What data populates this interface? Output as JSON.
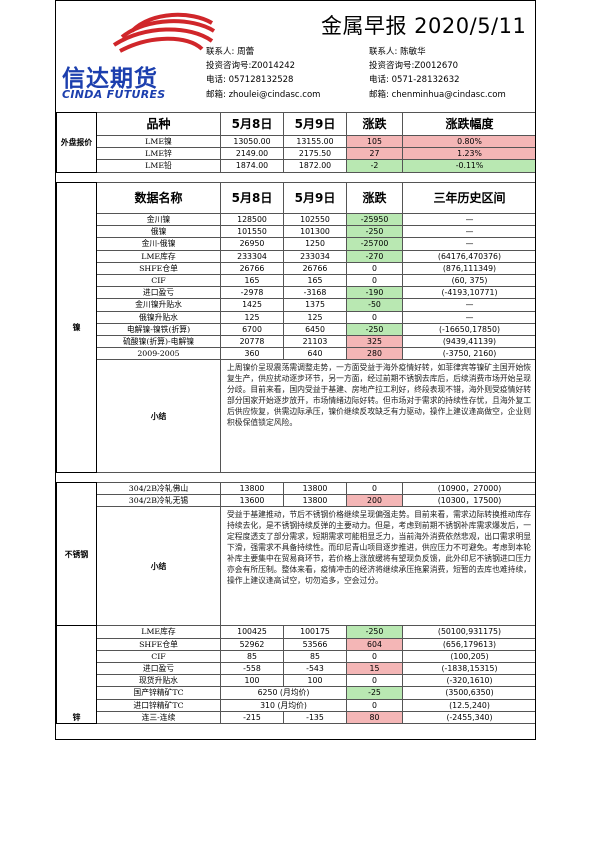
{
  "title": "金属早报 2020/5/11",
  "logo": {
    "name": "信达期货",
    "en": "CINDA FUTURES"
  },
  "contacts": [
    {
      "line1": "联系人: 周蕾",
      "line2": "投资咨询号:Z0014242",
      "line3": "电话: 057128132528",
      "line4": "邮箱: zhoulei@cindasc.com"
    },
    {
      "line1": "联系人: 陈敏华",
      "line2": "投资咨询号:Z0012670",
      "line3": "电话: 0571-28132632",
      "line4": "邮箱: chenminhua@cindasc.com"
    }
  ],
  "overseas": {
    "section": "外盘报价",
    "headers": [
      "品种",
      "5月8日",
      "5月9日",
      "涨跌",
      "涨跌幅度"
    ],
    "rows": [
      [
        "LME镍",
        "13050.00",
        "13155.00",
        "105",
        "0.80%"
      ],
      [
        "LME锌",
        "2149.00",
        "2175.50",
        "27",
        "1.23%"
      ],
      [
        "LME铅",
        "1874.00",
        "1872.00",
        "-2",
        "-0.11%"
      ]
    ]
  },
  "nickel": {
    "section": "镍",
    "headers": [
      "数据名称",
      "5月8日",
      "5月9日",
      "涨跌",
      "三年历史区间"
    ],
    "rows": [
      [
        "金川镍",
        "128500",
        "102550",
        "-25950",
        "—"
      ],
      [
        "俄镍",
        "101550",
        "101300",
        "-250",
        "—"
      ],
      [
        "金川-俄镍",
        "26950",
        "1250",
        "-25700",
        "—"
      ],
      [
        "LME库存",
        "233304",
        "233034",
        "-270",
        "(64176,470376)"
      ],
      [
        "SHFE仓单",
        "26766",
        "26766",
        "0",
        "(876,111349)"
      ],
      [
        "CIF",
        "165",
        "165",
        "0",
        "(60, 375)"
      ],
      [
        "进口盈亏",
        "-2978",
        "-3168",
        "-190",
        "(-4193,10771)"
      ],
      [
        "金川镍升贴水",
        "1425",
        "1375",
        "-50",
        "—"
      ],
      [
        "俄镍升贴水",
        "125",
        "125",
        "0",
        "—"
      ],
      [
        "电解镍-镍铁(折算)",
        "6700",
        "6450",
        "-250",
        "(-16650,17850)"
      ],
      [
        "硫酸镍(折算)-电解镍",
        "20778",
        "21103",
        "325",
        "(9439,41139)"
      ],
      [
        "2009-2005",
        "360",
        "640",
        "280",
        "(-3750, 2160)"
      ]
    ],
    "summary_label": "小结",
    "summary": "上周镍价呈现震荡需调整走势，一方面受益于海外疫情好转，如菲律宾等镍矿主国开始恢复生产，供应扰动逐步环节，另一方面，经过前期不锈钢去库后，后续消费市场开始呈现分歧。目前来看，国内受益于基建、房地产拉工利好，终段表现不错，海外则受疫情好转部分国家开始逐步放开，市场情绪边际好转。但市场对于需求的持续性存忧，且海外复工后供应恢复，供需边际承压，镍价继续反攻缺乏有力驱动，操作上建议逢高做空，企业则积极保值锁定风险。"
  },
  "stainless": {
    "section": "不锈钢",
    "rows": [
      [
        "304/2B冷轧佛山",
        "13800",
        "13800",
        "0",
        "(10900，27000)"
      ],
      [
        "304/2B冷轧无锡",
        "13600",
        "13800",
        "200",
        "(10300，17500)"
      ]
    ],
    "summary_label": "小结",
    "summary": "受益于基建推动，节后不锈钢价格继续呈现偏强走势。目前来看，需求边际转换推动库存持续去化，是不锈钢持续反弹的主要动力。但是，考虑到前期不锈钢补库需求爆发后，一定程度透支了部分需求，短期需求可能相显乏力，当前海外消费依然悲观，出口需求明显下滑，强需求不具备持续性。而印尼青山项目逐步推进，供应压力不可避免。考虑到本轮补库主要集中在贸易商环节，若价格上涨放缓将有望现负反馈，此外印尼不锈钢进口压力亦会有所压制。整体来看，疫情冲击的经济将继续承压拖累消费，短暂的去库也难持续，操作上建议逢高试空，切勿追多，空会过分。"
  },
  "zinc": {
    "section": "锌",
    "rows": [
      [
        "LME库存",
        "100425",
        "100175",
        "-250",
        "(50100,931175)"
      ],
      [
        "SHFE仓单",
        "52962",
        "53566",
        "604",
        "(656,179613)"
      ],
      [
        "CIF",
        "85",
        "85",
        "0",
        "(100,205)"
      ],
      [
        "进口盈亏",
        "-558",
        "-543",
        "15",
        "(-1838,15315)"
      ],
      [
        "现货升贴水",
        "100",
        "100",
        "0",
        "(-320,1610)"
      ],
      [
        "国产锌精矿TC",
        "6250 (月均价)",
        "",
        "-25",
        "(3500,6350)"
      ],
      [
        "进口锌精矿TC",
        "310 (月均价)",
        "",
        "0",
        "(12.5,240)"
      ],
      [
        "连三-连续",
        "-215",
        "-135",
        "80",
        "(-2455,340)"
      ]
    ]
  },
  "colors": {
    "up": "#f4b6b6",
    "down": "#b9e8b2",
    "brand": "#1c3fae",
    "logo_red": "#d0262a"
  }
}
